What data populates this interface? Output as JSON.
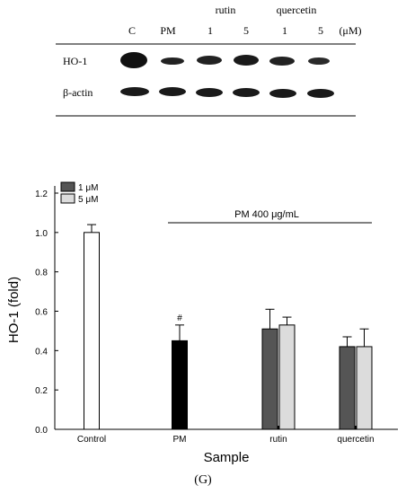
{
  "blot": {
    "header_top": [
      "rutin",
      "quercetin"
    ],
    "lanes": [
      "C",
      "PM",
      "1",
      "5",
      "1",
      "5"
    ],
    "unit": "(μM)",
    "rows": [
      "HO-1",
      "β-actin"
    ]
  },
  "caption": "(G)",
  "chart_data": {
    "type": "bar",
    "categories": [
      "Control",
      "PM",
      "rutin",
      "quercetin"
    ],
    "series": [
      {
        "category": "Control",
        "value": 1.0,
        "error": 0.04,
        "color": "#ffffff"
      },
      {
        "category": "PM",
        "value": 0.45,
        "error": 0.08,
        "color": "#000000"
      },
      {
        "category": "rutin",
        "name": "1 μM",
        "value": 0.51,
        "error": 0.1,
        "color": "#555555"
      },
      {
        "category": "rutin",
        "name": "5 μM",
        "value": 0.53,
        "error": 0.04,
        "color": "#dcdcdc"
      },
      {
        "category": "quercetin",
        "name": "1 μM",
        "value": 0.42,
        "error": 0.05,
        "color": "#555555"
      },
      {
        "category": "quercetin",
        "name": "5 μM",
        "value": 0.42,
        "error": 0.09,
        "color": "#dcdcdc"
      }
    ],
    "legend": [
      {
        "label": "1 μM",
        "color": "#555555"
      },
      {
        "label": "5 μM",
        "color": "#dcdcdc"
      }
    ],
    "annotation_bracket": "PM 400 μg/mL",
    "annotation_mark": "#",
    "xlabel": "Sample",
    "ylabel": "HO-1 (fold)",
    "ylim": [
      0.0,
      1.2
    ],
    "yticks": [
      "0.0",
      "0.2",
      "0.4",
      "0.6",
      "0.8",
      "1.0",
      "1.2"
    ],
    "grid": false,
    "legend_position": "top-left"
  }
}
